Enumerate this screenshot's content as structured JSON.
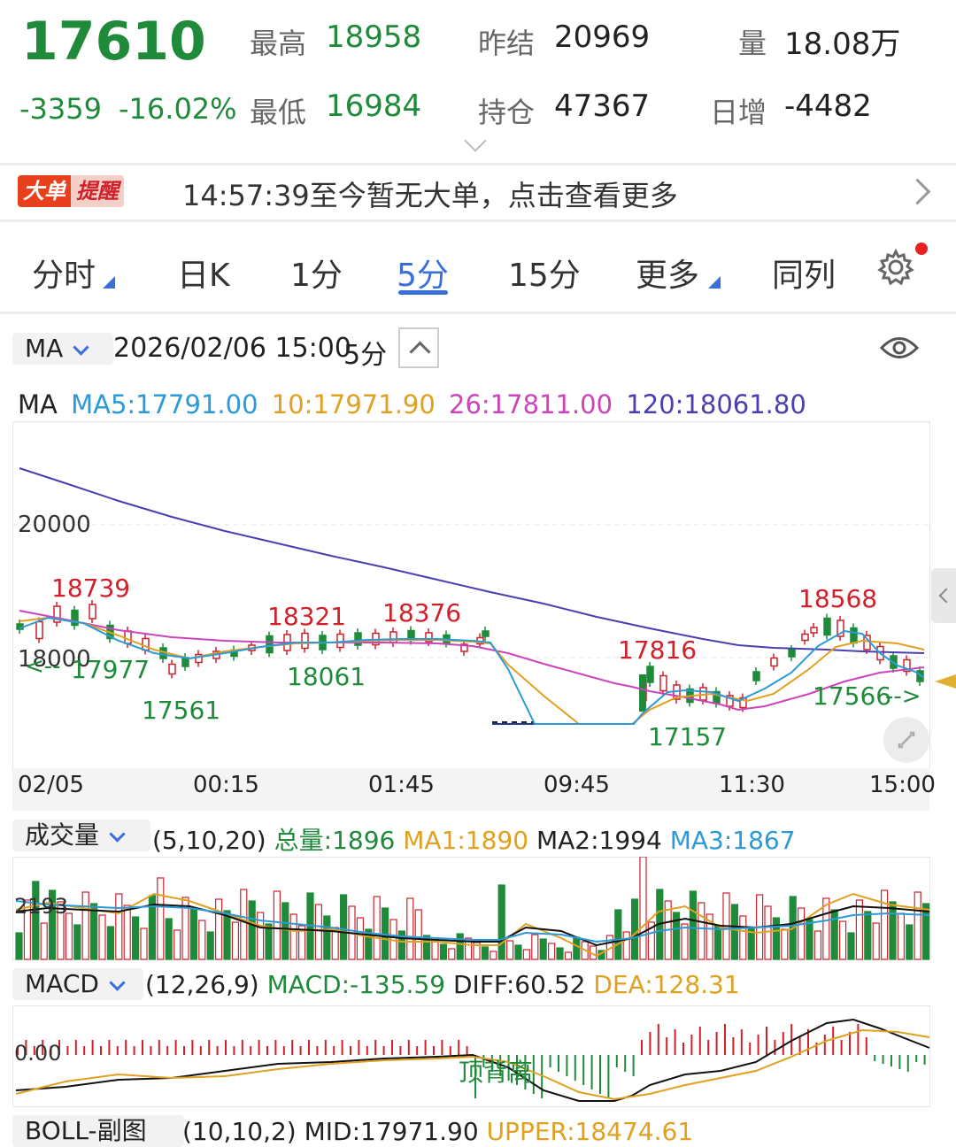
{
  "header": {
    "price": "17610",
    "change": "-3359",
    "change_pct": "-16.02%",
    "high_label": "最高",
    "high_value": "18958",
    "low_label": "最低",
    "low_value": "16984",
    "prev_settle_label": "昨结",
    "prev_settle_value": "20969",
    "open_interest_label": "持仓",
    "open_interest_value": "47367",
    "volume_label": "量",
    "volume_value": "18.08万",
    "daily_incr_label": "日增",
    "daily_incr_value": "-4482"
  },
  "banner": {
    "badge_part1": "大单",
    "badge_part2": "提醒",
    "text": "14:57:39至今暂无大单，点击查看更多"
  },
  "tabs": [
    {
      "label": "分时"
    },
    {
      "label": "日K"
    },
    {
      "label": "1分"
    },
    {
      "label": "5分"
    },
    {
      "label": "15分"
    },
    {
      "label": "更多"
    },
    {
      "label": "同列"
    }
  ],
  "active_tab": "5分",
  "main_chart": {
    "indicator_select": "MA",
    "datetime": "2026/02/06 15:00",
    "period": "5分",
    "ma_legend": {
      "prefix": "MA",
      "ma5": "MA5:17791.00",
      "ma10": "10:17971.90",
      "ma26": "26:17811.00",
      "ma120": "120:18061.80"
    },
    "y_labels": [
      "20000",
      "18000"
    ],
    "x_labels": [
      "02/05",
      "00:15",
      "01:45",
      "09:45",
      "11:30",
      "15:00"
    ],
    "annotations": {
      "h1": "18739",
      "l1": "17977",
      "l2": "17561",
      "h2": "18321",
      "l3": "18061",
      "h3": "18376",
      "h4": "17816",
      "l4": "17157",
      "h5": "18568",
      "l5": "17566"
    },
    "colors": {
      "up": "#d0202a",
      "down": "#1e8a3a",
      "ma5": "#2b9ad8",
      "ma10": "#e0a020",
      "ma26": "#cc44bb",
      "ma120": "#4a3fb0"
    }
  },
  "volume_panel": {
    "select": "成交量",
    "params": "(5,10,20)",
    "total": "总量:1896",
    "ma1": "MA1:1890",
    "ma2": "MA2:1994",
    "ma3": "MA3:1867",
    "y_label": "2193"
  },
  "macd_panel": {
    "select": "MACD",
    "params": "(12,26,9)",
    "macd": "MACD:-135.59",
    "diff": "DIFF:60.52",
    "dea": "DEA:128.31",
    "zero_label": "0.00",
    "signal_text": "顶背离"
  },
  "next_panel": {
    "select": "BOLL-副图",
    "params": "(10,10,2)",
    "mid": "MID:17971.90",
    "upper": "UPPER:18474.61"
  }
}
